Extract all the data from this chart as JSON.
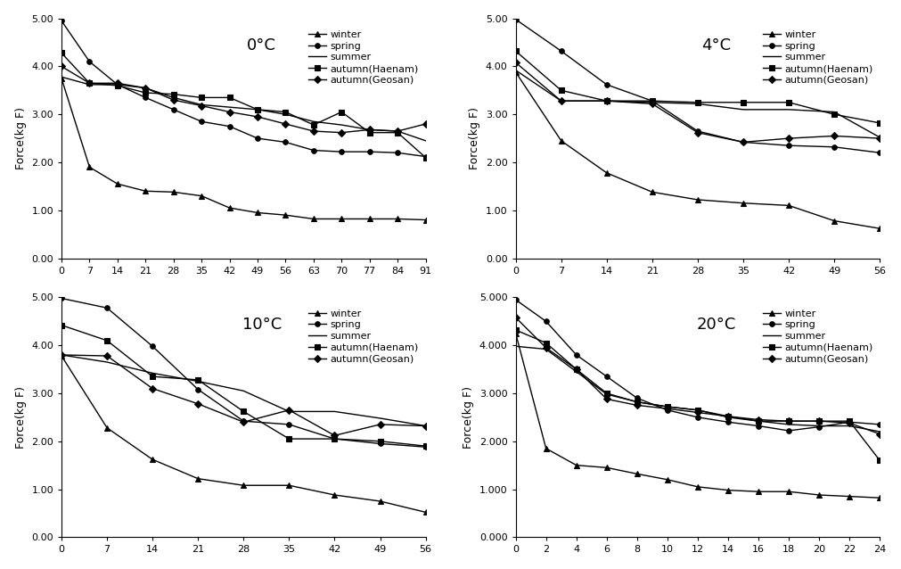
{
  "panels": [
    {
      "title": "0°C",
      "xlabel_ticks": [
        0,
        7,
        14,
        21,
        28,
        35,
        42,
        49,
        56,
        63,
        70,
        77,
        84,
        91
      ],
      "xlim": [
        0,
        91
      ],
      "ylim": [
        0.0,
        5.0
      ],
      "yticks": [
        0.0,
        1.0,
        2.0,
        3.0,
        4.0,
        5.0
      ],
      "ytick_labels": [
        "0.00",
        "1.00",
        "2.00",
        "3.00",
        "4.00",
        "5.00"
      ],
      "series": {
        "winter": {
          "x": [
            0,
            7,
            14,
            21,
            28,
            35,
            42,
            49,
            56,
            63,
            70,
            77,
            84,
            91
          ],
          "y": [
            3.75,
            1.9,
            1.55,
            1.4,
            1.38,
            1.3,
            1.05,
            0.95,
            0.9,
            0.82,
            0.82,
            0.82,
            0.82,
            0.8
          ]
        },
        "spring": {
          "x": [
            0,
            7,
            14,
            21,
            28,
            35,
            42,
            49,
            56,
            63,
            70,
            77,
            84,
            91
          ],
          "y": [
            4.95,
            4.1,
            3.62,
            3.35,
            3.1,
            2.85,
            2.75,
            2.5,
            2.42,
            2.25,
            2.22,
            2.22,
            2.2,
            2.12
          ]
        },
        "summer": {
          "x": [
            0,
            7,
            14,
            21,
            28,
            35,
            42,
            49,
            56,
            63,
            70,
            77,
            84,
            91
          ],
          "y": [
            3.78,
            3.62,
            3.62,
            3.55,
            3.35,
            3.2,
            3.15,
            3.1,
            3.0,
            2.85,
            2.78,
            2.68,
            2.65,
            2.45
          ]
        },
        "autumn_haenam": {
          "x": [
            0,
            7,
            14,
            21,
            28,
            35,
            42,
            49,
            56,
            63,
            70,
            77,
            84,
            91
          ],
          "y": [
            4.28,
            3.65,
            3.6,
            3.45,
            3.42,
            3.35,
            3.35,
            3.1,
            3.05,
            2.78,
            3.05,
            2.62,
            2.62,
            2.1
          ]
        },
        "autumn_geosan": {
          "x": [
            0,
            7,
            14,
            21,
            28,
            35,
            42,
            49,
            56,
            63,
            70,
            77,
            84,
            91
          ],
          "y": [
            4.0,
            3.65,
            3.65,
            3.55,
            3.3,
            3.18,
            3.05,
            2.95,
            2.8,
            2.65,
            2.62,
            2.68,
            2.65,
            2.8
          ]
        }
      }
    },
    {
      "title": "4°C",
      "xlabel_ticks": [
        0,
        7,
        14,
        21,
        28,
        35,
        42,
        49,
        56
      ],
      "xlim": [
        0,
        56
      ],
      "ylim": [
        0.0,
        5.0
      ],
      "yticks": [
        0.0,
        1.0,
        2.0,
        3.0,
        4.0,
        5.0
      ],
      "ytick_labels": [
        "0.00",
        "1.00",
        "2.00",
        "3.00",
        "4.00",
        "5.00"
      ],
      "series": {
        "winter": {
          "x": [
            0,
            7,
            14,
            21,
            28,
            35,
            42,
            49,
            56
          ],
          "y": [
            3.88,
            2.45,
            1.78,
            1.38,
            1.22,
            1.15,
            1.1,
            0.78,
            0.62
          ]
        },
        "spring": {
          "x": [
            0,
            7,
            14,
            21,
            28,
            35,
            42,
            49,
            56
          ],
          "y": [
            4.98,
            4.32,
            3.62,
            3.28,
            2.65,
            2.42,
            2.35,
            2.32,
            2.2
          ]
        },
        "summer": {
          "x": [
            0,
            7,
            14,
            21,
            28,
            35,
            42,
            49,
            56
          ],
          "y": [
            3.92,
            3.28,
            3.28,
            3.25,
            3.22,
            3.1,
            3.1,
            3.05,
            2.52
          ]
        },
        "autumn_haenam": {
          "x": [
            0,
            7,
            14,
            21,
            28,
            35,
            42,
            49,
            56
          ],
          "y": [
            4.32,
            3.5,
            3.28,
            3.28,
            3.25,
            3.25,
            3.25,
            3.0,
            2.82
          ]
        },
        "autumn_geosan": {
          "x": [
            0,
            7,
            14,
            21,
            28,
            35,
            42,
            49,
            56
          ],
          "y": [
            4.08,
            3.28,
            3.28,
            3.22,
            2.62,
            2.42,
            2.5,
            2.55,
            2.5
          ]
        }
      }
    },
    {
      "title": "10°C",
      "xlabel_ticks": [
        0,
        7,
        14,
        21,
        28,
        35,
        42,
        49,
        56
      ],
      "xlim": [
        0,
        56
      ],
      "ylim": [
        0.0,
        5.0
      ],
      "yticks": [
        0.0,
        1.0,
        2.0,
        3.0,
        4.0,
        5.0
      ],
      "ytick_labels": [
        "0.00",
        "1.00",
        "2.00",
        "3.00",
        "4.00",
        "5.00"
      ],
      "series": {
        "winter": {
          "x": [
            0,
            7,
            14,
            21,
            28,
            35,
            42,
            49,
            56
          ],
          "y": [
            3.78,
            2.28,
            1.62,
            1.22,
            1.08,
            1.08,
            0.88,
            0.75,
            0.52
          ]
        },
        "spring": {
          "x": [
            0,
            7,
            14,
            21,
            28,
            35,
            42,
            49,
            56
          ],
          "y": [
            4.98,
            4.78,
            3.98,
            3.08,
            2.42,
            2.35,
            2.05,
            1.95,
            1.88
          ]
        },
        "summer": {
          "x": [
            0,
            7,
            14,
            21,
            28,
            35,
            42,
            49,
            56
          ],
          "y": [
            3.8,
            3.65,
            3.42,
            3.25,
            3.05,
            2.62,
            2.62,
            2.48,
            2.32
          ]
        },
        "autumn_haenam": {
          "x": [
            0,
            7,
            14,
            21,
            28,
            35,
            42,
            49,
            56
          ],
          "y": [
            4.42,
            4.1,
            3.35,
            3.28,
            2.62,
            2.05,
            2.05,
            2.0,
            1.9
          ]
        },
        "autumn_geosan": {
          "x": [
            0,
            7,
            14,
            21,
            28,
            35,
            42,
            49,
            56
          ],
          "y": [
            3.8,
            3.78,
            3.1,
            2.78,
            2.4,
            2.65,
            2.12,
            2.35,
            2.32
          ]
        }
      }
    },
    {
      "title": "20°C",
      "xlabel_ticks": [
        0,
        2,
        4,
        6,
        8,
        10,
        12,
        14,
        16,
        18,
        20,
        22,
        24
      ],
      "xlim": [
        0,
        24
      ],
      "ylim": [
        0.0,
        5.0
      ],
      "yticks": [
        0.0,
        1.0,
        2.0,
        3.0,
        4.0,
        5.0
      ],
      "ytick_labels": [
        "0.000",
        "1.000",
        "2.000",
        "3.000",
        "4.000",
        "5.000"
      ],
      "series": {
        "winter": {
          "x": [
            0,
            2,
            4,
            6,
            8,
            10,
            12,
            14,
            16,
            18,
            20,
            22,
            24
          ],
          "y": [
            4.25,
            1.85,
            1.5,
            1.45,
            1.32,
            1.2,
            1.05,
            0.98,
            0.95,
            0.95,
            0.88,
            0.85,
            0.82
          ]
        },
        "spring": {
          "x": [
            0,
            2,
            4,
            6,
            8,
            10,
            12,
            14,
            16,
            18,
            20,
            22,
            24
          ],
          "y": [
            4.95,
            4.5,
            3.8,
            3.35,
            2.9,
            2.65,
            2.5,
            2.4,
            2.32,
            2.22,
            2.3,
            2.4,
            2.35
          ]
        },
        "summer": {
          "x": [
            0,
            2,
            4,
            6,
            8,
            10,
            12,
            14,
            16,
            18,
            20,
            22,
            24
          ],
          "y": [
            3.98,
            3.92,
            3.45,
            2.98,
            2.82,
            2.72,
            2.65,
            2.5,
            2.42,
            2.35,
            2.32,
            2.32,
            2.2
          ]
        },
        "autumn_haenam": {
          "x": [
            0,
            2,
            4,
            6,
            8,
            10,
            12,
            14,
            16,
            18,
            20,
            22,
            24
          ],
          "y": [
            4.32,
            4.05,
            3.5,
            3.0,
            2.82,
            2.72,
            2.65,
            2.52,
            2.42,
            2.42,
            2.42,
            2.42,
            1.6
          ]
        },
        "autumn_geosan": {
          "x": [
            0,
            2,
            4,
            6,
            8,
            10,
            12,
            14,
            16,
            18,
            20,
            22,
            24
          ],
          "y": [
            4.58,
            3.95,
            3.5,
            2.88,
            2.75,
            2.68,
            2.6,
            2.52,
            2.45,
            2.42,
            2.42,
            2.38,
            2.15
          ]
        }
      }
    }
  ],
  "series_keys": [
    "winter",
    "spring",
    "summer",
    "autumn_haenam",
    "autumn_geosan"
  ],
  "legend_labels": [
    "winter",
    "spring",
    "summer",
    "autumn(Haenam)",
    "autumn(Geosan)"
  ],
  "markers": [
    "^",
    "o",
    null,
    "s",
    "D"
  ],
  "ylabel": "Force(kg F)",
  "line_color": "black",
  "markersize": 4,
  "linewidth": 1.0,
  "fontsize_title": 13,
  "fontsize_axis": 9,
  "fontsize_legend": 8,
  "fontsize_tick": 8
}
